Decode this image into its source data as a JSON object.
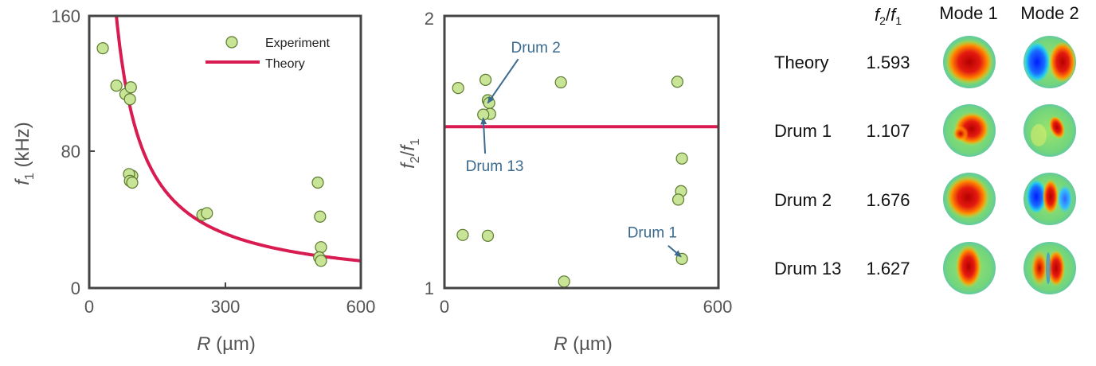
{
  "chart_data": [
    {
      "type": "scatter",
      "title": "",
      "xlabel": "R (µm)",
      "xlabel_parts": {
        "var": "R",
        "unit": " (µm)"
      },
      "ylabel": "f1 (kHz)",
      "ylabel_parts": {
        "var": "f",
        "sub": "1",
        "unit": " (kHz)"
      },
      "xlim": [
        0,
        600
      ],
      "ylim": [
        0,
        160
      ],
      "xticks": [
        "0",
        "300",
        "600"
      ],
      "yticks": [
        "0",
        "80",
        "160"
      ],
      "legend": {
        "position": "top-right",
        "entries": [
          "Experiment",
          "Theory"
        ]
      },
      "series": [
        {
          "name": "Experiment",
          "kind": "scatter",
          "color": "#c8e496",
          "edge": "#5b7a2e",
          "x": [
            30,
            60,
            80,
            90,
            92,
            95,
            88,
            90,
            95,
            250,
            260,
            505,
            510,
            512,
            508,
            512
          ],
          "y": [
            141,
            119,
            114,
            111,
            118,
            66,
            67,
            63,
            62,
            43,
            44,
            62,
            42,
            24,
            18,
            16
          ]
        },
        {
          "name": "Theory",
          "kind": "line",
          "color": "#d81b50",
          "equation": "f1 = 9600 / R"
        }
      ]
    },
    {
      "type": "scatter",
      "title": "",
      "xlabel": "R (µm)",
      "xlabel_parts": {
        "var": "R",
        "unit": " (µm)"
      },
      "ylabel": "f2/f1",
      "ylabel_parts": {
        "a": "f",
        "asub": "2",
        "b": "f",
        "bsub": "1"
      },
      "xlim": [
        0,
        600
      ],
      "ylim": [
        1,
        2
      ],
      "xticks": [
        "0",
        "600"
      ],
      "yticks": [
        "1",
        "2"
      ],
      "series": [
        {
          "name": "Experiment",
          "kind": "scatter",
          "color": "#c8e496",
          "edge": "#5b7a2e",
          "x": [
            30,
            90,
            95,
            98,
            100,
            85,
            40,
            95,
            255,
            262,
            510,
            520,
            518,
            512,
            520
          ],
          "y": [
            1.735,
            1.765,
            1.69,
            1.68,
            1.64,
            1.637,
            1.195,
            1.192,
            1.756,
            1.024,
            1.758,
            1.476,
            1.356,
            1.325,
            1.107
          ]
        },
        {
          "name": "Theory",
          "kind": "hline",
          "color": "#d81b50",
          "y": 1.593
        }
      ],
      "annotations": [
        {
          "text": "Drum 2",
          "text_x": 200,
          "text_y": 1.865,
          "arrow_to_x": 95,
          "arrow_to_y": 1.68
        },
        {
          "text": "Drum 13",
          "text_x": 110,
          "text_y": 1.43,
          "arrow_to_x": 85,
          "arrow_to_y": 1.625
        },
        {
          "text": "Drum 1",
          "text_x": 455,
          "text_y": 1.185,
          "arrow_to_x": 518,
          "arrow_to_y": 1.115
        }
      ]
    }
  ],
  "table": {
    "header": {
      "ratio": {
        "a": "f",
        "asub": "2",
        "b": "f",
        "bsub": "1"
      },
      "mode1": "Mode 1",
      "mode2": "Mode 2"
    },
    "rows": [
      {
        "label": "Theory",
        "value": "1.593",
        "mode1": "theory-mode1",
        "mode2": "theory-mode2"
      },
      {
        "label": "Drum 1",
        "value": "1.107",
        "mode1": "drum1-mode1",
        "mode2": "drum1-mode2"
      },
      {
        "label": "Drum 2",
        "value": "1.676",
        "mode1": "drum2-mode1",
        "mode2": "drum2-mode2"
      },
      {
        "label": "Drum 13",
        "value": "1.627",
        "mode1": "drum13-mode1",
        "mode2": "drum13-mode2"
      }
    ]
  },
  "colors": {
    "axis": "#444444",
    "tick_text": "#555555",
    "annotation": "#3a6a8f",
    "theory": "#d81b50",
    "marker": "#c8e496",
    "marker_edge": "#5b7a2e",
    "mode_bg": "#6fd47a",
    "mode_hot": "#d40000",
    "mode_cold": "#0033ff"
  }
}
